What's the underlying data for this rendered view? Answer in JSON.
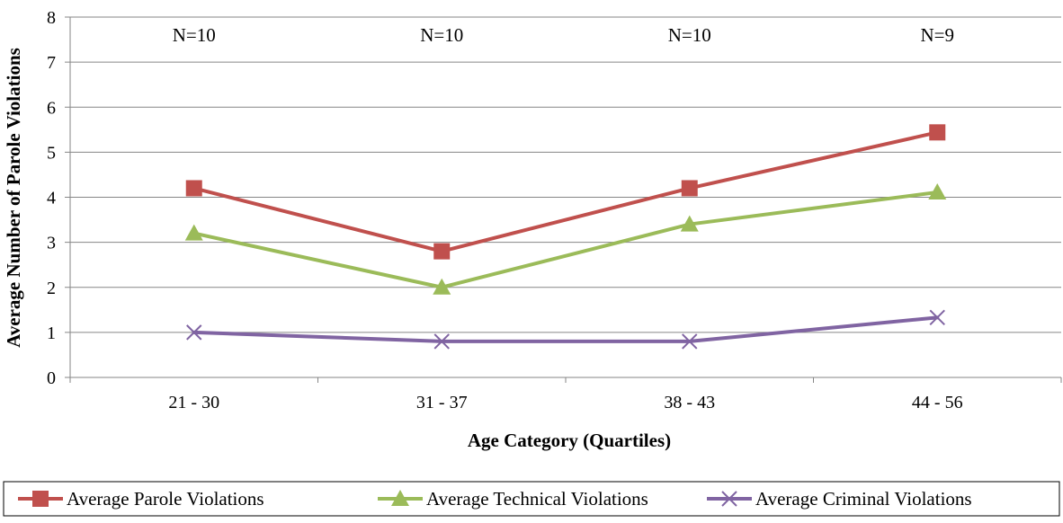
{
  "chart_data": {
    "type": "line",
    "categories": [
      "21 - 30",
      "31 - 37",
      "38 - 43",
      "44 - 56"
    ],
    "xlabel": "Age Category (Quartiles)",
    "ylabel": "Average Number of Parole Violations",
    "ylim": [
      0,
      8
    ],
    "yticks": [
      0,
      1,
      2,
      3,
      4,
      5,
      6,
      7,
      8
    ],
    "grid": true,
    "legend": "bottom",
    "annotations": [
      "N=10",
      "N=10",
      "N=10",
      "N=9"
    ],
    "series": [
      {
        "name": "Average Parole Violations",
        "values": [
          4.2,
          2.8,
          4.2,
          5.44
        ],
        "color": "#C0504D",
        "marker": "square"
      },
      {
        "name": "Average Technical Violations",
        "values": [
          3.2,
          2.0,
          3.4,
          4.11
        ],
        "color": "#9BBB59",
        "marker": "triangle"
      },
      {
        "name": "Average Criminal Violations",
        "values": [
          1.0,
          0.8,
          0.8,
          1.33
        ],
        "color": "#8064A2",
        "marker": "x"
      }
    ]
  }
}
